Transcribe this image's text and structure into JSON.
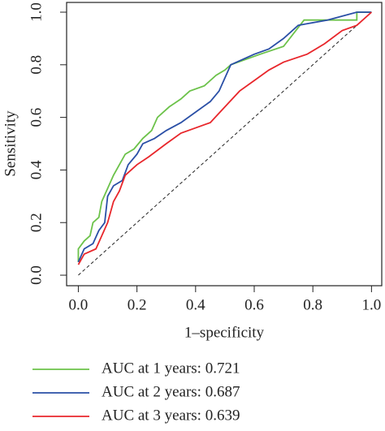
{
  "chart_data": {
    "type": "line",
    "xlabel": "1–specificity",
    "ylabel": "Sensitivity",
    "xlim": [
      -0.04,
      1.035
    ],
    "ylim": [
      -0.04,
      1.037
    ],
    "xticks": [
      {
        "value": 0,
        "label": "0.0"
      },
      {
        "value": 0.2,
        "label": "0.2"
      },
      {
        "value": 0.4,
        "label": "0.4"
      },
      {
        "value": 0.6,
        "label": "0.6"
      },
      {
        "value": 0.8,
        "label": "0.8"
      },
      {
        "value": 1,
        "label": "1.0"
      }
    ],
    "yticks": [
      {
        "value": 0,
        "label": "0.0"
      },
      {
        "value": 0.2,
        "label": "0.2"
      },
      {
        "value": 0.4,
        "label": "0.4"
      },
      {
        "value": 0.6,
        "label": "0.6"
      },
      {
        "value": 0.8,
        "label": "0.8"
      },
      {
        "value": 1,
        "label": "1.0"
      }
    ],
    "series": [
      {
        "name": "AUC at 1 years: 0.721",
        "color": "#6cc24a",
        "x": [
          0,
          0,
          0.02,
          0.04,
          0.05,
          0.07,
          0.08,
          0.1,
          0.12,
          0.14,
          0.16,
          0.19,
          0.22,
          0.25,
          0.27,
          0.31,
          0.35,
          0.38,
          0.43,
          0.47,
          0.5,
          0.52,
          0.57,
          0.62,
          0.7,
          0.77,
          0.95,
          0.95,
          1
        ],
        "y": [
          0.05,
          0.1,
          0.13,
          0.15,
          0.2,
          0.22,
          0.28,
          0.33,
          0.38,
          0.42,
          0.46,
          0.48,
          0.52,
          0.55,
          0.6,
          0.64,
          0.67,
          0.7,
          0.72,
          0.76,
          0.78,
          0.8,
          0.82,
          0.84,
          0.87,
          0.97,
          0.97,
          1,
          1
        ]
      },
      {
        "name": "AUC at 2 years: 0.687",
        "color": "#2a4fa6",
        "x": [
          0,
          0.02,
          0.05,
          0.07,
          0.09,
          0.1,
          0.12,
          0.15,
          0.17,
          0.2,
          0.22,
          0.26,
          0.3,
          0.35,
          0.4,
          0.45,
          0.48,
          0.5,
          0.52,
          0.6,
          0.65,
          0.7,
          0.75,
          0.85,
          0.95,
          1
        ],
        "y": [
          0.05,
          0.1,
          0.12,
          0.17,
          0.2,
          0.3,
          0.34,
          0.36,
          0.42,
          0.46,
          0.5,
          0.52,
          0.55,
          0.58,
          0.62,
          0.66,
          0.7,
          0.75,
          0.8,
          0.84,
          0.86,
          0.9,
          0.95,
          0.97,
          1,
          1
        ]
      },
      {
        "name": "AUC at 3 years: 0.639",
        "color": "#e8262b",
        "x": [
          0,
          0.02,
          0.06,
          0.08,
          0.1,
          0.12,
          0.14,
          0.16,
          0.2,
          0.24,
          0.3,
          0.35,
          0.4,
          0.45,
          0.5,
          0.55,
          0.6,
          0.65,
          0.7,
          0.78,
          0.84,
          0.9,
          0.95,
          1
        ],
        "y": [
          0.04,
          0.08,
          0.1,
          0.15,
          0.2,
          0.28,
          0.32,
          0.38,
          0.42,
          0.45,
          0.5,
          0.54,
          0.56,
          0.58,
          0.64,
          0.7,
          0.74,
          0.78,
          0.81,
          0.84,
          0.88,
          0.93,
          0.95,
          1
        ]
      }
    ]
  }
}
